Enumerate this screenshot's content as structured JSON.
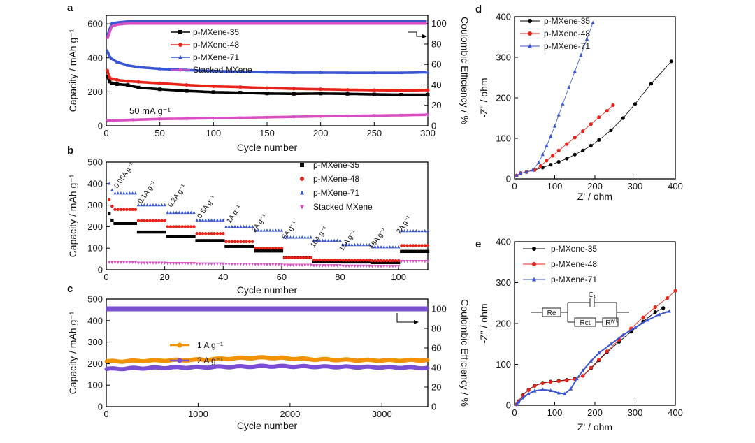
{
  "chart_data": [
    {
      "panel": "a",
      "type": "line",
      "xlabel": "Cycle number",
      "ylabel": "Capacity / mAh g⁻¹",
      "y2label": "Coulombic Efficiency / %",
      "xlim": [
        0,
        300
      ],
      "ylim": [
        0,
        650
      ],
      "y2lim": [
        0,
        108
      ],
      "xticks": [
        "0",
        "50",
        "100",
        "150",
        "200",
        "250",
        "300"
      ],
      "yticks": [
        "0",
        "200",
        "400",
        "600"
      ],
      "y2ticks": [
        "0",
        "20",
        "40",
        "60",
        "80",
        "100"
      ],
      "annotation": "50 mA g⁻¹",
      "series": [
        {
          "name": "p-MXene-35",
          "color": "#000000",
          "x": [
            1,
            3,
            5,
            10,
            20,
            30,
            50,
            75,
            100,
            125,
            150,
            175,
            200,
            225,
            250,
            275,
            300
          ],
          "y": [
            290,
            260,
            250,
            245,
            240,
            225,
            215,
            205,
            198,
            195,
            190,
            188,
            190,
            188,
            185,
            183,
            183
          ]
        },
        {
          "name": "p-MXene-48",
          "color": "#e8231a",
          "x": [
            1,
            3,
            5,
            10,
            20,
            30,
            50,
            75,
            100,
            125,
            150,
            175,
            200,
            225,
            250,
            275,
            300
          ],
          "y": [
            325,
            285,
            275,
            270,
            262,
            258,
            250,
            240,
            232,
            228,
            222,
            218,
            215,
            212,
            210,
            208,
            210
          ]
        },
        {
          "name": "p-MXene-71",
          "color": "#3a56d4",
          "x": [
            1,
            3,
            5,
            10,
            20,
            30,
            50,
            75,
            100,
            125,
            150,
            175,
            200,
            225,
            250,
            275,
            300
          ],
          "y": [
            440,
            410,
            395,
            375,
            355,
            345,
            335,
            328,
            322,
            318,
            315,
            313,
            313,
            312,
            312,
            312,
            315
          ]
        },
        {
          "name": "Stacked MXene",
          "color": "#d94fc3",
          "x": [
            1,
            10,
            25,
            50,
            75,
            100,
            125,
            150,
            175,
            200,
            225,
            250,
            275,
            300
          ],
          "y": [
            30,
            32,
            35,
            40,
            42,
            45,
            47,
            50,
            53,
            56,
            58,
            60,
            62,
            65
          ]
        },
        {
          "name": "",
          "axis": "right",
          "color": "#3a56d4",
          "x": [
            1,
            5,
            10,
            20,
            50,
            100,
            150,
            200,
            250,
            300
          ],
          "y": [
            88,
            100,
            101,
            102,
            102,
            102,
            102,
            102,
            102,
            102
          ]
        },
        {
          "name": "",
          "axis": "right",
          "color": "#d94fc3",
          "x": [
            1,
            5,
            10,
            20,
            50,
            100,
            150,
            200,
            250,
            300
          ],
          "y": [
            85,
            97,
            99,
            100,
            100,
            100,
            100,
            100,
            100,
            100
          ]
        }
      ]
    },
    {
      "panel": "b",
      "type": "scatter",
      "xlabel": "Cycle number",
      "ylabel": "Capacity / mAh g⁻¹",
      "xlim": [
        0,
        110
      ],
      "ylim": [
        0,
        500
      ],
      "xticks": [
        "0",
        "20",
        "40",
        "60",
        "80",
        "100"
      ],
      "yticks": [
        "0",
        "100",
        "200",
        "300",
        "400",
        "500"
      ],
      "rate_labels": [
        "0.05A g⁻¹",
        "0.1A g⁻¹",
        "0.2A g⁻¹",
        "0.5A g⁻¹",
        "1A g⁻¹",
        "2A g⁻¹",
        "5A g⁻¹",
        "10A g⁻¹",
        "15A g⁻¹",
        "18A g⁻¹",
        "2A g⁻¹"
      ],
      "series": [
        {
          "name": "p-MXene-35",
          "color": "#000000",
          "step_values": [
            215,
            175,
            155,
            135,
            108,
            87,
            56,
            38,
            36,
            33,
            85
          ]
        },
        {
          "name": "p-MXene-48",
          "color": "#e8231a",
          "step_values": [
            280,
            228,
            200,
            168,
            130,
            100,
            56,
            45,
            44,
            42,
            112
          ]
        },
        {
          "name": "p-MXene-71",
          "color": "#3a56d4",
          "step_values": [
            355,
            300,
            265,
            230,
            200,
            182,
            150,
            135,
            115,
            105,
            180
          ]
        },
        {
          "name": "Stacked MXene",
          "color": "#d94fc3",
          "step_values": [
            35,
            32,
            30,
            28,
            27,
            25,
            22,
            20,
            18,
            17,
            40
          ]
        }
      ]
    },
    {
      "panel": "c",
      "type": "line",
      "xlabel": "Cycle number",
      "ylabel": "Capacity / mAh g⁻¹",
      "y2label": "Coulombic Efficiency / %",
      "xlim": [
        0,
        3500
      ],
      "ylim": [
        0,
        500
      ],
      "y2lim": [
        0,
        110
      ],
      "xticks": [
        "0",
        "1000",
        "2000",
        "3000"
      ],
      "yticks": [
        "0",
        "100",
        "200",
        "300",
        "400",
        "500"
      ],
      "y2ticks": [
        "0",
        "20",
        "40",
        "60",
        "80",
        "100"
      ],
      "series": [
        {
          "name": "1 A g⁻¹",
          "color": "#f39200",
          "x": [
            0,
            250,
            500,
            750,
            1000,
            1250,
            1500,
            1750,
            2000,
            2250,
            2500,
            2750,
            3000,
            3250,
            3500
          ],
          "y": [
            210,
            212,
            214,
            216,
            218,
            222,
            226,
            228,
            224,
            220,
            218,
            216,
            215,
            215,
            217
          ]
        },
        {
          "name": "2 A g⁻¹",
          "color": "#7a4fd3",
          "x": [
            0,
            250,
            500,
            750,
            1000,
            1250,
            1500,
            1750,
            2000,
            2250,
            2500,
            2750,
            3000,
            3250,
            3500
          ],
          "y": [
            175,
            178,
            180,
            182,
            183,
            185,
            186,
            188,
            187,
            186,
            185,
            184,
            183,
            182,
            180
          ]
        },
        {
          "name": "",
          "axis": "right",
          "color": "#7a4fd3",
          "x": [
            0,
            500,
            1000,
            1500,
            2000,
            2500,
            3000,
            3500
          ],
          "y": [
            100,
            100,
            100,
            100,
            100,
            100,
            100,
            100
          ]
        }
      ]
    },
    {
      "panel": "d",
      "type": "scatter",
      "xlabel": "Z' / ohm",
      "ylabel": "-Z\" / ohm",
      "xlim": [
        0,
        400
      ],
      "ylim": [
        0,
        400
      ],
      "xticks": [
        "0",
        "100",
        "200",
        "300",
        "400"
      ],
      "yticks": [
        "0",
        "100",
        "200",
        "300",
        "400"
      ],
      "series": [
        {
          "name": "p-MXene-35",
          "color": "#000000",
          "x": [
            5,
            15,
            30,
            50,
            70,
            90,
            110,
            130,
            150,
            170,
            190,
            210,
            240,
            270,
            300,
            340,
            390
          ],
          "y": [
            8,
            14,
            17,
            22,
            28,
            35,
            42,
            50,
            60,
            70,
            82,
            96,
            120,
            150,
            185,
            235,
            290
          ]
        },
        {
          "name": "p-MXene-48",
          "color": "#e8231a",
          "x": [
            5,
            15,
            30,
            50,
            65,
            80,
            95,
            110,
            130,
            150,
            170,
            190,
            210,
            230,
            245
          ],
          "y": [
            8,
            14,
            17,
            22,
            32,
            45,
            57,
            70,
            86,
            102,
            118,
            135,
            152,
            168,
            182
          ]
        },
        {
          "name": "p-MXene-71",
          "color": "#3a56d4",
          "x": [
            5,
            15,
            30,
            45,
            60,
            70,
            80,
            90,
            100,
            110,
            120,
            135,
            150,
            165,
            180,
            195
          ],
          "y": [
            8,
            14,
            17,
            22,
            40,
            60,
            82,
            105,
            130,
            158,
            185,
            225,
            265,
            305,
            345,
            385
          ]
        }
      ]
    },
    {
      "panel": "e",
      "type": "scatter",
      "xlabel": "Z' / ohm",
      "ylabel": "-Z\" / ohm",
      "xlim": [
        0,
        400
      ],
      "ylim": [
        0,
        400
      ],
      "xticks": [
        "0",
        "100",
        "200",
        "300",
        "400"
      ],
      "yticks": [
        "0",
        "100",
        "200",
        "300",
        "400"
      ],
      "circuit_labels": {
        "re": "Re",
        "c1": "C₁",
        "rct": "Rct",
        "rw": "Rᵂ"
      },
      "series": [
        {
          "name": "p-MXene-35",
          "color": "#000000",
          "x": [
            5,
            10,
            20,
            35,
            50,
            70,
            90,
            110,
            130,
            150,
            170,
            190,
            210,
            230,
            260,
            290,
            320,
            350,
            370
          ],
          "y": [
            2,
            10,
            25,
            38,
            48,
            55,
            58,
            60,
            62,
            65,
            72,
            90,
            110,
            130,
            155,
            180,
            205,
            228,
            238
          ]
        },
        {
          "name": "p-MXene-48",
          "color": "#e8231a",
          "x": [
            5,
            10,
            20,
            35,
            50,
            70,
            90,
            110,
            130,
            150,
            170,
            190,
            210,
            230,
            260,
            290,
            320,
            350,
            380,
            400
          ],
          "y": [
            2,
            10,
            24,
            37,
            47,
            54,
            57,
            59,
            61,
            64,
            72,
            92,
            112,
            132,
            160,
            188,
            215,
            240,
            262,
            280
          ]
        },
        {
          "name": "p-MXene-71",
          "color": "#3a56d4",
          "x": [
            5,
            10,
            20,
            35,
            50,
            70,
            90,
            110,
            125,
            140,
            155,
            170,
            190,
            210,
            240,
            270,
            300,
            330,
            360,
            385
          ],
          "y": [
            2,
            8,
            18,
            28,
            35,
            38,
            36,
            30,
            28,
            40,
            65,
            85,
            108,
            128,
            150,
            172,
            190,
            208,
            222,
            230
          ]
        }
      ]
    }
  ]
}
